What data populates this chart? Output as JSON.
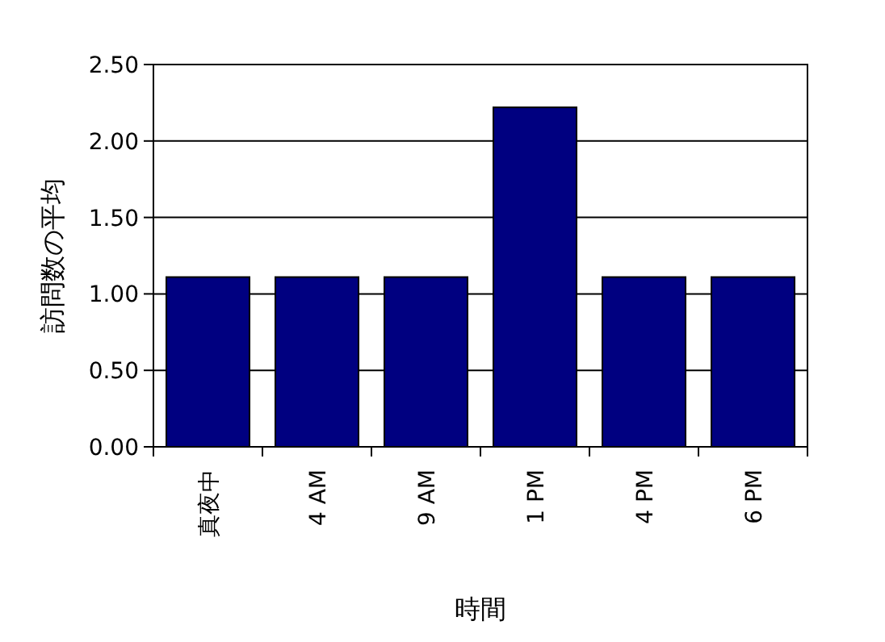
{
  "chart_data": {
    "type": "bar",
    "xlabel": "時間",
    "ylabel": "訪問数の平均",
    "categories": [
      "真夜中",
      "4 AM",
      "9 AM",
      "1 PM",
      "4 PM",
      "6 PM"
    ],
    "values": [
      1.11,
      1.11,
      1.11,
      2.22,
      1.11,
      1.11
    ],
    "color": "#000080",
    "ylim": [
      0,
      2.5
    ],
    "yticks": [
      {
        "value": 0,
        "label": "0.00"
      },
      {
        "value": 0.5,
        "label": "0.50"
      },
      {
        "value": 1,
        "label": "1.00"
      },
      {
        "value": 1.5,
        "label": "1.50"
      },
      {
        "value": 2,
        "label": "2.00"
      },
      {
        "value": 2.5,
        "label": "2.50"
      }
    ],
    "grid": "y"
  }
}
